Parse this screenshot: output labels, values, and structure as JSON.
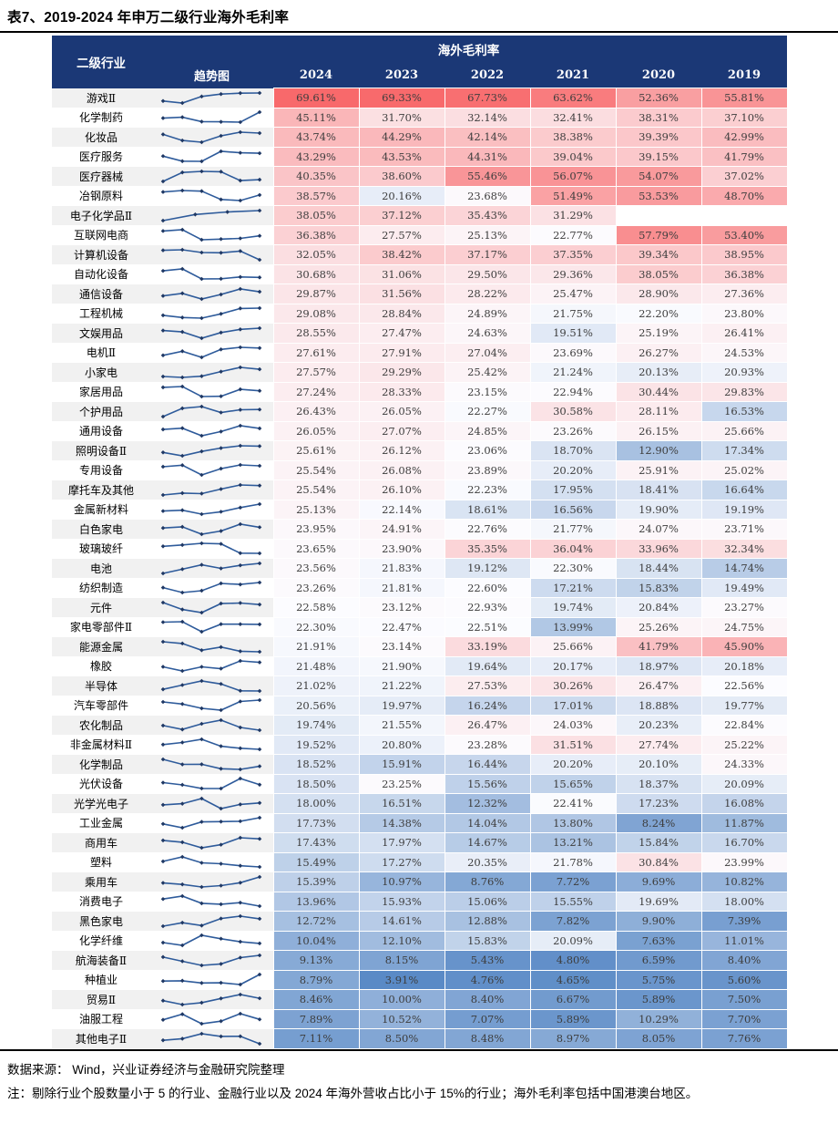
{
  "page": {
    "title": "表7、2019-2024 年申万二级行业海外毛利率"
  },
  "table": {
    "industry_header": "二级行业",
    "trend_header": "趋势图",
    "group_header": "海外毛利率",
    "years": [
      "2024",
      "2023",
      "2022",
      "2021",
      "2020",
      "2019"
    ],
    "rows": [
      {
        "name": "游戏Ⅱ",
        "values": [
          69.61,
          69.33,
          67.73,
          63.62,
          52.36,
          55.81
        ]
      },
      {
        "name": "化学制药",
        "values": [
          45.11,
          31.7,
          32.14,
          32.41,
          38.31,
          37.1
        ]
      },
      {
        "name": "化妆品",
        "values": [
          43.74,
          44.29,
          42.14,
          38.38,
          39.39,
          42.99
        ]
      },
      {
        "name": "医疗服务",
        "values": [
          43.29,
          43.53,
          44.31,
          39.04,
          39.15,
          41.79
        ]
      },
      {
        "name": "医疗器械",
        "values": [
          40.35,
          38.6,
          55.46,
          56.07,
          54.07,
          37.02
        ]
      },
      {
        "name": "冶钢原料",
        "values": [
          38.57,
          20.16,
          23.68,
          51.49,
          53.53,
          48.7
        ]
      },
      {
        "name": "电子化学品Ⅱ",
        "values": [
          38.05,
          37.12,
          35.43,
          31.29,
          null,
          null
        ]
      },
      {
        "name": "互联网电商",
        "values": [
          36.38,
          27.57,
          25.13,
          22.77,
          57.79,
          53.4
        ]
      },
      {
        "name": "计算机设备",
        "values": [
          32.05,
          38.42,
          37.17,
          37.35,
          39.34,
          38.95
        ]
      },
      {
        "name": "自动化设备",
        "values": [
          30.68,
          31.06,
          29.5,
          29.36,
          38.05,
          36.38
        ]
      },
      {
        "name": "通信设备",
        "values": [
          29.87,
          31.56,
          28.22,
          25.47,
          28.9,
          27.36
        ]
      },
      {
        "name": "工程机械",
        "values": [
          29.08,
          28.84,
          24.89,
          21.75,
          22.2,
          23.8
        ]
      },
      {
        "name": "文娱用品",
        "values": [
          28.55,
          27.47,
          24.63,
          19.51,
          25.19,
          26.41
        ]
      },
      {
        "name": "电机Ⅱ",
        "values": [
          27.61,
          27.91,
          27.04,
          23.69,
          26.27,
          24.53
        ]
      },
      {
        "name": "小家电",
        "values": [
          27.57,
          29.29,
          25.42,
          21.24,
          20.13,
          20.93
        ]
      },
      {
        "name": "家居用品",
        "values": [
          27.24,
          28.33,
          23.15,
          22.94,
          30.44,
          29.83
        ]
      },
      {
        "name": "个护用品",
        "values": [
          26.43,
          26.05,
          22.27,
          30.58,
          28.11,
          16.53
        ]
      },
      {
        "name": "通用设备",
        "values": [
          26.05,
          27.07,
          24.85,
          23.26,
          26.15,
          25.66
        ]
      },
      {
        "name": "照明设备Ⅱ",
        "values": [
          25.61,
          26.12,
          23.06,
          18.7,
          12.9,
          17.34
        ]
      },
      {
        "name": "专用设备",
        "values": [
          25.54,
          26.08,
          23.89,
          20.2,
          25.91,
          25.02
        ]
      },
      {
        "name": "摩托车及其他",
        "values": [
          25.54,
          26.1,
          22.23,
          17.95,
          18.41,
          16.64
        ]
      },
      {
        "name": "金属新材料",
        "values": [
          25.13,
          22.14,
          18.61,
          16.56,
          19.9,
          19.19
        ]
      },
      {
        "name": "白色家电",
        "values": [
          23.95,
          24.91,
          22.76,
          21.77,
          24.07,
          23.71
        ]
      },
      {
        "name": "玻璃玻纤",
        "values": [
          23.65,
          23.9,
          35.35,
          36.04,
          33.96,
          32.34
        ]
      },
      {
        "name": "电池",
        "values": [
          23.56,
          21.83,
          19.12,
          22.3,
          18.44,
          14.74
        ]
      },
      {
        "name": "纺织制造",
        "values": [
          23.26,
          21.81,
          22.6,
          17.21,
          15.83,
          19.49
        ]
      },
      {
        "name": "元件",
        "values": [
          22.58,
          23.12,
          22.93,
          19.74,
          20.84,
          23.27
        ]
      },
      {
        "name": "家电零部件Ⅱ",
        "values": [
          22.3,
          22.47,
          22.51,
          13.99,
          25.26,
          24.75
        ]
      },
      {
        "name": "能源金属",
        "values": [
          21.91,
          23.14,
          33.19,
          25.66,
          41.79,
          45.9
        ]
      },
      {
        "name": "橡胶",
        "values": [
          21.48,
          21.9,
          19.64,
          20.17,
          18.97,
          20.18
        ]
      },
      {
        "name": "半导体",
        "values": [
          21.02,
          21.22,
          27.53,
          30.26,
          26.47,
          22.56
        ]
      },
      {
        "name": "汽车零部件",
        "values": [
          20.56,
          19.97,
          16.24,
          17.01,
          18.88,
          19.77
        ]
      },
      {
        "name": "农化制品",
        "values": [
          19.74,
          21.55,
          26.47,
          24.03,
          20.23,
          22.84
        ]
      },
      {
        "name": "非金属材料Ⅱ",
        "values": [
          19.52,
          20.8,
          23.28,
          31.51,
          27.74,
          25.22
        ]
      },
      {
        "name": "化学制品",
        "values": [
          18.52,
          15.91,
          16.44,
          20.2,
          20.1,
          24.33
        ]
      },
      {
        "name": "光伏设备",
        "values": [
          18.5,
          23.25,
          15.56,
          15.65,
          18.37,
          20.09
        ]
      },
      {
        "name": "光学光电子",
        "values": [
          18.0,
          16.51,
          12.32,
          22.41,
          17.23,
          16.08
        ]
      },
      {
        "name": "工业金属",
        "values": [
          17.73,
          14.38,
          14.04,
          13.8,
          8.24,
          11.87
        ]
      },
      {
        "name": "商用车",
        "values": [
          17.43,
          17.97,
          14.67,
          13.21,
          15.84,
          16.7
        ]
      },
      {
        "name": "塑料",
        "values": [
          15.49,
          17.27,
          20.35,
          21.78,
          30.84,
          23.99
        ]
      },
      {
        "name": "乘用车",
        "values": [
          15.39,
          10.97,
          8.76,
          7.72,
          9.69,
          10.82
        ]
      },
      {
        "name": "消费电子",
        "values": [
          13.96,
          15.93,
          15.06,
          15.55,
          19.69,
          18.0
        ]
      },
      {
        "name": "黑色家电",
        "values": [
          12.72,
          14.61,
          12.88,
          7.82,
          9.9,
          7.39
        ]
      },
      {
        "name": "化学纤维",
        "values": [
          10.04,
          12.1,
          15.83,
          20.09,
          7.63,
          11.01
        ]
      },
      {
        "name": "航海装备Ⅱ",
        "values": [
          9.13,
          8.15,
          5.43,
          4.8,
          6.59,
          8.4
        ]
      },
      {
        "name": "种植业",
        "values": [
          8.79,
          3.91,
          4.76,
          4.65,
          5.75,
          5.6
        ]
      },
      {
        "name": "贸易Ⅱ",
        "values": [
          8.46,
          10.0,
          8.4,
          6.67,
          5.89,
          7.5
        ]
      },
      {
        "name": "油服工程",
        "values": [
          7.89,
          10.52,
          7.07,
          5.89,
          10.29,
          7.7
        ]
      },
      {
        "name": "其他电子Ⅱ",
        "values": [
          7.11,
          8.5,
          8.48,
          8.97,
          8.05,
          7.76
        ]
      }
    ]
  },
  "footer": {
    "source": "数据来源：  Wind，兴业证券经济与金融研究院整理",
    "note": "注：剔除行业个股数量小于 5 的行业、金融行业以及 2024 年海外营收占比小于 15%的行业；海外毛利率包括中国港澳台地区。"
  },
  "colors": {
    "header_bg": "#1B3876",
    "heat_min": "#5A8AC6",
    "heat_mid": "#FCFCFF",
    "heat_max": "#F8696B",
    "sparkline_line": "#2E5B9B",
    "sparkline_marker": "#1F3864",
    "stripe": "#F1F1F1",
    "value_text": "#3D3D3D"
  }
}
